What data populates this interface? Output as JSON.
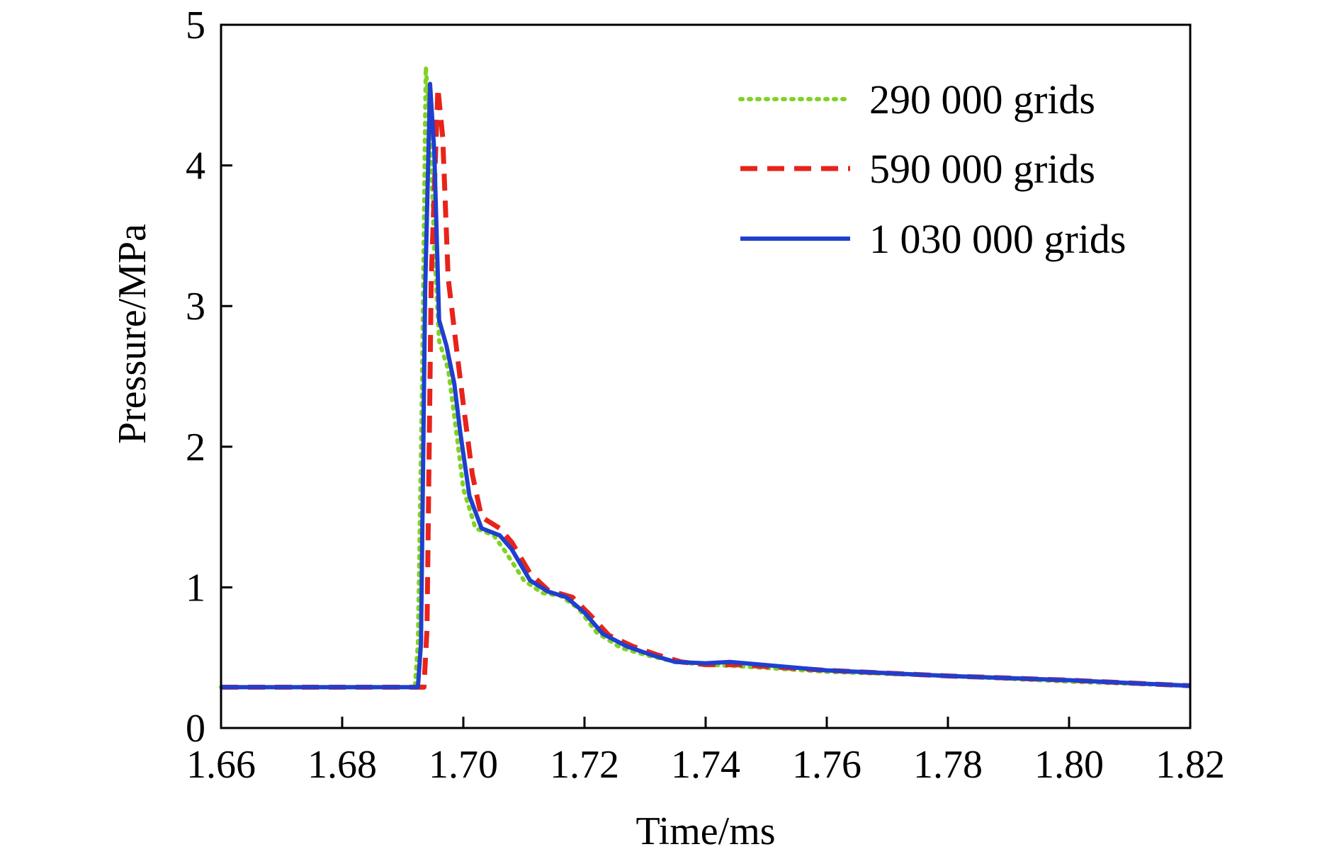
{
  "chart_data": {
    "type": "line",
    "title": "",
    "xlabel": "Time/ms",
    "ylabel": "Pressure/MPa",
    "xlim": [
      1.66,
      1.82
    ],
    "ylim": [
      0,
      5
    ],
    "xticks": [
      1.66,
      1.68,
      1.7,
      1.72,
      1.74,
      1.76,
      1.78,
      1.8,
      1.82
    ],
    "xtick_labels": [
      "1.66",
      "1.68",
      "1.70",
      "1.72",
      "1.74",
      "1.76",
      "1.78",
      "1.80",
      "1.82"
    ],
    "yticks": [
      0,
      1,
      2,
      3,
      4,
      5
    ],
    "ytick_labels": [
      "0",
      "1",
      "2",
      "3",
      "4",
      "5"
    ],
    "grid": false,
    "legend_position": "top-right",
    "series": [
      {
        "name": "290 000 grids",
        "color": "#7fd321",
        "style": "dotted",
        "points": [
          [
            1.66,
            0.29
          ],
          [
            1.692,
            0.29
          ],
          [
            1.6925,
            0.6
          ],
          [
            1.6932,
            2.5
          ],
          [
            1.6938,
            4.7
          ],
          [
            1.6945,
            4.3
          ],
          [
            1.6952,
            3.4
          ],
          [
            1.696,
            2.75
          ],
          [
            1.6975,
            2.55
          ],
          [
            1.699,
            2.05
          ],
          [
            1.7,
            1.7
          ],
          [
            1.702,
            1.42
          ],
          [
            1.705,
            1.37
          ],
          [
            1.707,
            1.25
          ],
          [
            1.71,
            1.05
          ],
          [
            1.713,
            0.96
          ],
          [
            1.716,
            0.94
          ],
          [
            1.719,
            0.85
          ],
          [
            1.722,
            0.68
          ],
          [
            1.726,
            0.57
          ],
          [
            1.73,
            0.52
          ],
          [
            1.735,
            0.47
          ],
          [
            1.74,
            0.45
          ],
          [
            1.745,
            0.44
          ],
          [
            1.76,
            0.4
          ],
          [
            1.78,
            0.37
          ],
          [
            1.8,
            0.33
          ],
          [
            1.82,
            0.3
          ]
        ]
      },
      {
        "name": "590 000 grids",
        "color": "#e8231a",
        "style": "dashed",
        "points": [
          [
            1.66,
            0.29
          ],
          [
            1.6935,
            0.29
          ],
          [
            1.694,
            0.7
          ],
          [
            1.6947,
            3.2
          ],
          [
            1.6958,
            4.55
          ],
          [
            1.6966,
            4.2
          ],
          [
            1.6975,
            3.2
          ],
          [
            1.699,
            2.65
          ],
          [
            1.7,
            2.3
          ],
          [
            1.7015,
            1.8
          ],
          [
            1.703,
            1.5
          ],
          [
            1.706,
            1.42
          ],
          [
            1.708,
            1.32
          ],
          [
            1.711,
            1.1
          ],
          [
            1.714,
            0.98
          ],
          [
            1.718,
            0.93
          ],
          [
            1.721,
            0.8
          ],
          [
            1.724,
            0.66
          ],
          [
            1.728,
            0.58
          ],
          [
            1.732,
            0.52
          ],
          [
            1.736,
            0.47
          ],
          [
            1.74,
            0.45
          ],
          [
            1.745,
            0.45
          ],
          [
            1.76,
            0.41
          ],
          [
            1.78,
            0.37
          ],
          [
            1.8,
            0.34
          ],
          [
            1.82,
            0.3
          ]
        ]
      },
      {
        "name": "1 030 000 grids",
        "color": "#1f3fcf",
        "style": "solid",
        "points": [
          [
            1.66,
            0.29
          ],
          [
            1.6925,
            0.29
          ],
          [
            1.693,
            0.6
          ],
          [
            1.6937,
            3.1
          ],
          [
            1.6945,
            4.58
          ],
          [
            1.6952,
            4.1
          ],
          [
            1.696,
            2.9
          ],
          [
            1.6972,
            2.72
          ],
          [
            1.6985,
            2.45
          ],
          [
            1.6995,
            2.1
          ],
          [
            1.701,
            1.65
          ],
          [
            1.703,
            1.42
          ],
          [
            1.706,
            1.37
          ],
          [
            1.708,
            1.27
          ],
          [
            1.711,
            1.05
          ],
          [
            1.714,
            0.97
          ],
          [
            1.717,
            0.93
          ],
          [
            1.72,
            0.82
          ],
          [
            1.723,
            0.67
          ],
          [
            1.727,
            0.58
          ],
          [
            1.731,
            0.52
          ],
          [
            1.735,
            0.47
          ],
          [
            1.74,
            0.46
          ],
          [
            1.744,
            0.47
          ],
          [
            1.76,
            0.41
          ],
          [
            1.78,
            0.37
          ],
          [
            1.8,
            0.34
          ],
          [
            1.82,
            0.3
          ]
        ]
      }
    ]
  }
}
